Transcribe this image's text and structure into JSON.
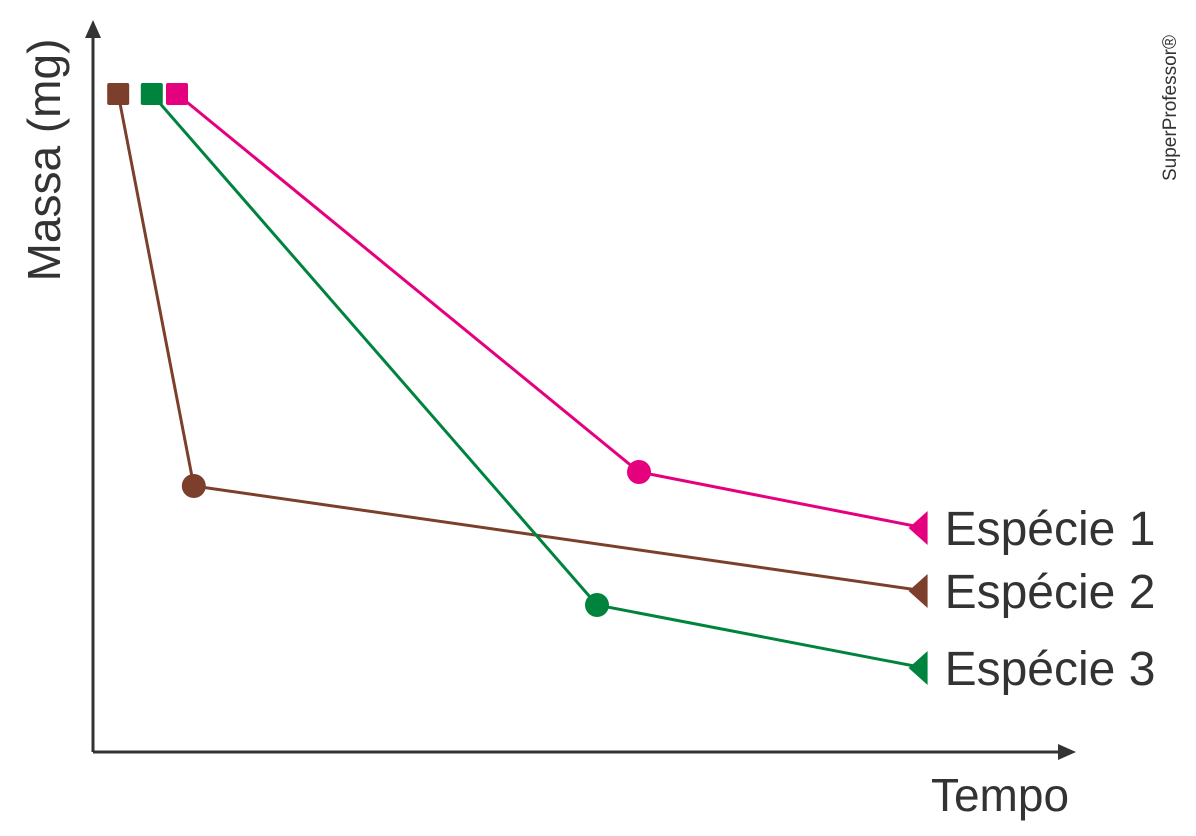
{
  "chart_data": {
    "type": "line",
    "title": "",
    "xlabel": "Tempo",
    "ylabel": "Massa (mg)",
    "x_ticks": false,
    "y_ticks": false,
    "grid": false,
    "legend": "right-of-lines",
    "series": [
      {
        "name": "Espécie 1",
        "color": "#e5007e",
        "points": [
          [
            0.1,
            0.94
          ],
          [
            0.65,
            0.4
          ],
          [
            0.99,
            0.32
          ]
        ],
        "markers": [
          "square",
          "circle",
          "triangle-left"
        ]
      },
      {
        "name": "Espécie 2",
        "color": "#7b3f2b",
        "points": [
          [
            0.03,
            0.94
          ],
          [
            0.12,
            0.38
          ],
          [
            0.99,
            0.23
          ]
        ],
        "markers": [
          "square",
          "circle",
          "triangle-left"
        ]
      },
      {
        "name": "Espécie 3",
        "color": "#00843d",
        "points": [
          [
            0.07,
            0.94
          ],
          [
            0.6,
            0.21
          ],
          [
            0.99,
            0.12
          ]
        ],
        "markers": [
          "square",
          "circle",
          "triangle-left"
        ]
      }
    ]
  },
  "watermark": "SuperProfessor®"
}
